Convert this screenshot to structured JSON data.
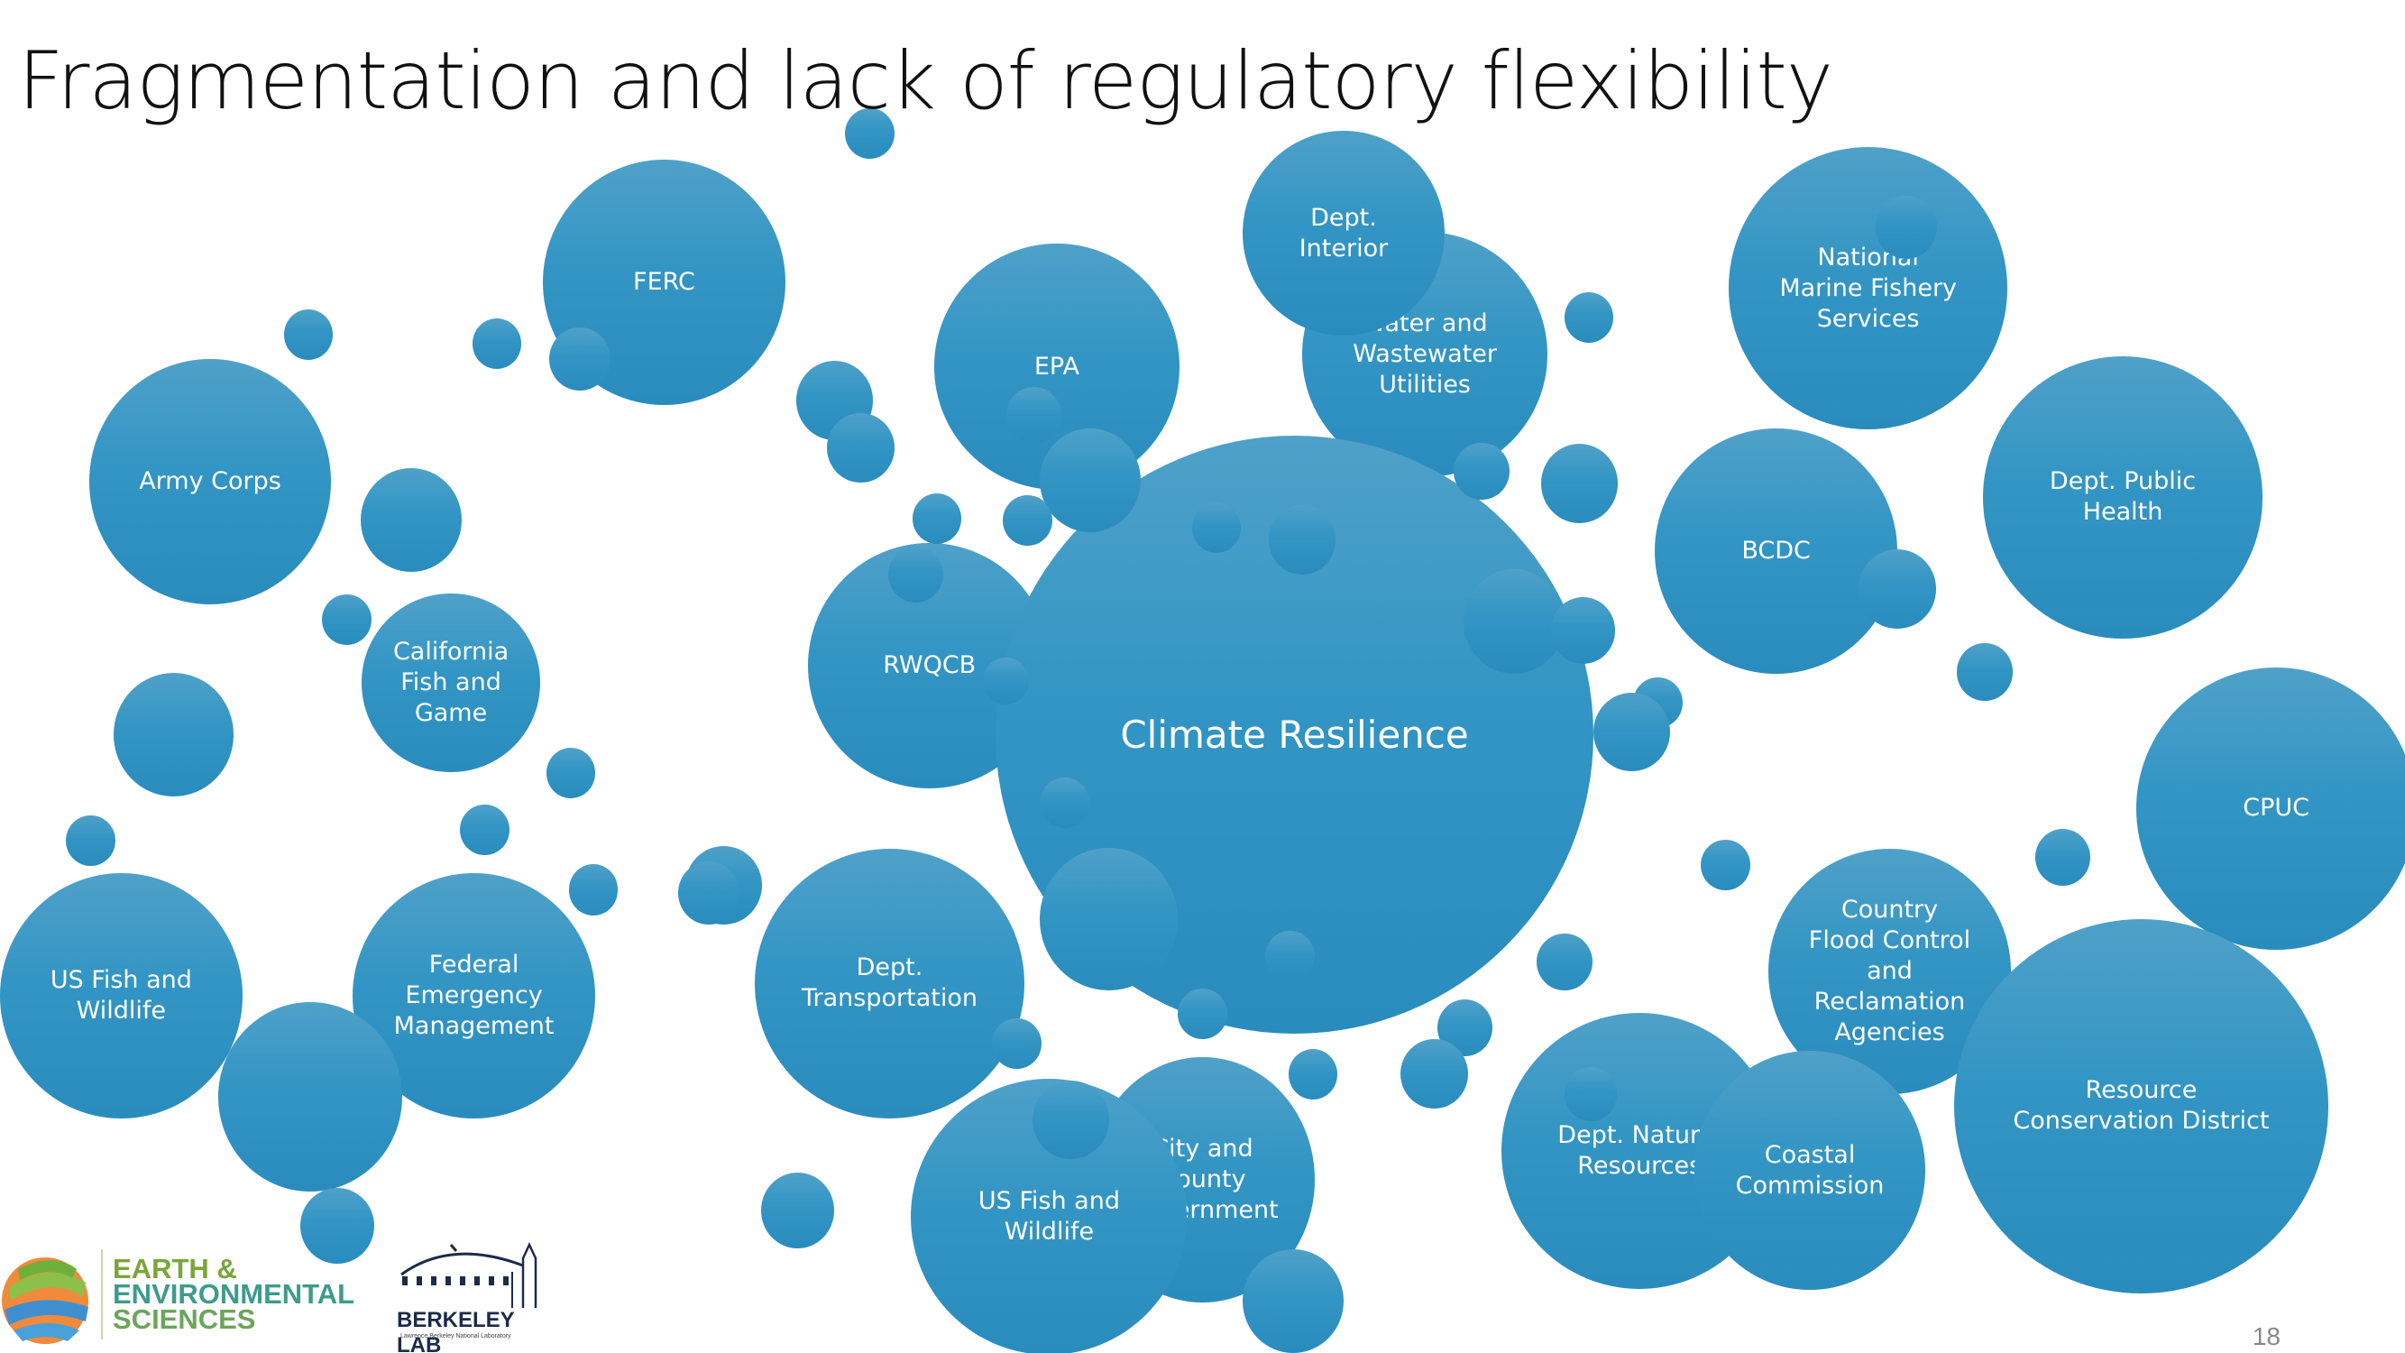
{
  "slide": {
    "title": "Fragmentation and lack of regulatory flexibility",
    "page_number": "18",
    "center": "Climate Resilience",
    "bubbles": {
      "ferc": "FERC",
      "army_corps": "Army Corps",
      "cal_fish_game": "California\nFish and\nGame",
      "us_fish_wildlife_left": "US Fish and\nWildlife",
      "fema": "Federal\nEmergency\nManagement",
      "epa": "EPA",
      "water_utilities": "Water and\nWastewater\nUtilities",
      "dept_interior": "Dept.\nInterior",
      "nmfs": "National\nMarine Fishery\nServices",
      "public_health": "Dept. Public\nHealth",
      "bcdc": "BCDC",
      "rwqcb": "RWQCB",
      "cpuc": "CPUC",
      "flood_control": "Country\nFlood Control\nand\nReclamation\nAgencies",
      "rcd": "Resource\nConservation District",
      "transportation": "Dept.\nTransportation",
      "city_county": "City and\nCounty\nGovernment",
      "us_fish_wildlife_bottom": "US Fish and\nWildlife",
      "natural_resources": "Dept. Natural\nResources",
      "coastal": "Coastal\nCommission"
    },
    "logos": {
      "ees": [
        "EARTH &",
        "ENVIRONMENTAL",
        "SCIENCES"
      ],
      "berkeley": "BERKELEY LAB",
      "berkeley_sub": "Lawrence Berkeley National Laboratory"
    },
    "colors": {
      "bubble": "#3295c4",
      "text": "#ffffff"
    }
  }
}
